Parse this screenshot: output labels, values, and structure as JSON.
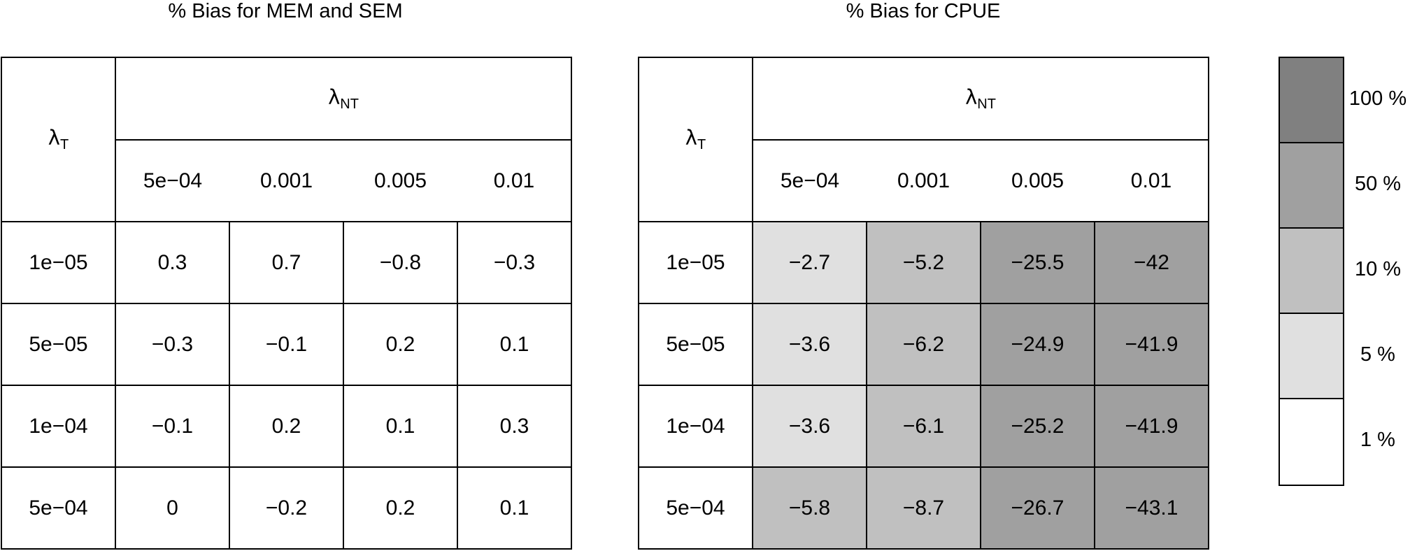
{
  "chart_data": [
    {
      "type": "table",
      "title": "% Bias for MEM and SEM",
      "row_header": "λ",
      "row_header_sub": "T",
      "col_header": "λ",
      "col_header_sub": "NT",
      "col_labels": [
        "5e−04",
        "0.001",
        "0.005",
        "0.01"
      ],
      "rows": [
        {
          "label": "1e−05",
          "values": [
            "0.3",
            "0.7",
            "−0.8",
            "−0.3"
          ],
          "shade": [
            "#ffffff",
            "#ffffff",
            "#ffffff",
            "#ffffff"
          ]
        },
        {
          "label": "5e−05",
          "values": [
            "−0.3",
            "−0.1",
            "0.2",
            "0.1"
          ],
          "shade": [
            "#ffffff",
            "#ffffff",
            "#ffffff",
            "#ffffff"
          ]
        },
        {
          "label": "1e−04",
          "values": [
            "−0.1",
            "0.2",
            "0.1",
            "0.3"
          ],
          "shade": [
            "#ffffff",
            "#ffffff",
            "#ffffff",
            "#ffffff"
          ]
        },
        {
          "label": "5e−04",
          "values": [
            "0",
            "−0.2",
            "0.2",
            "0.1"
          ],
          "shade": [
            "#ffffff",
            "#ffffff",
            "#ffffff",
            "#ffffff"
          ]
        }
      ]
    },
    {
      "type": "table",
      "title": "% Bias for CPUE",
      "row_header": "λ",
      "row_header_sub": "T",
      "col_header": "λ",
      "col_header_sub": "NT",
      "col_labels": [
        "5e−04",
        "0.001",
        "0.005",
        "0.01"
      ],
      "rows": [
        {
          "label": "1e−05",
          "values": [
            "−2.7",
            "−5.2",
            "−25.5",
            "−42"
          ],
          "shade": [
            "#e0e0e0",
            "#c0c0c0",
            "#a0a0a0",
            "#a0a0a0"
          ]
        },
        {
          "label": "5e−05",
          "values": [
            "−3.6",
            "−6.2",
            "−24.9",
            "−41.9"
          ],
          "shade": [
            "#e0e0e0",
            "#c0c0c0",
            "#a0a0a0",
            "#a0a0a0"
          ]
        },
        {
          "label": "1e−04",
          "values": [
            "−3.6",
            "−6.1",
            "−25.2",
            "−41.9"
          ],
          "shade": [
            "#e0e0e0",
            "#c0c0c0",
            "#a0a0a0",
            "#a0a0a0"
          ]
        },
        {
          "label": "5e−04",
          "values": [
            "−5.8",
            "−8.7",
            "−26.7",
            "−43.1"
          ],
          "shade": [
            "#c0c0c0",
            "#c0c0c0",
            "#a0a0a0",
            "#a0a0a0"
          ]
        }
      ]
    }
  ],
  "legend": [
    {
      "label": "100 %",
      "color": "#808080"
    },
    {
      "label": "50 %",
      "color": "#a0a0a0"
    },
    {
      "label": "10 %",
      "color": "#c0c0c0"
    },
    {
      "label": "5 %",
      "color": "#e0e0e0"
    },
    {
      "label": "1 %",
      "color": "#ffffff"
    }
  ]
}
